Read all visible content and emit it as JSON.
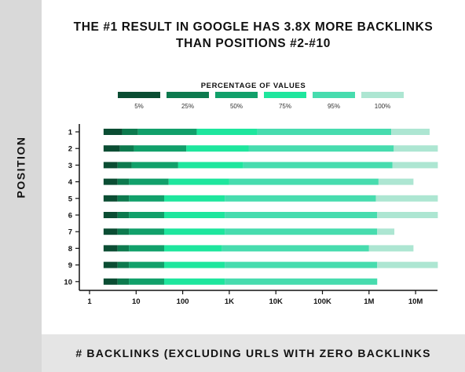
{
  "title_line1": "THE #1 RESULT IN GOOGLE HAS 3.8X MORE BACKLINKS",
  "title_line2": "THAN POSITIONS #2-#10",
  "legend_title": "PERCENTAGE OF VALUES",
  "ylabel": "POSITION",
  "xlabel": "# BACKLINKS (EXCLUDING URLS WITH ZERO BACKLINKS",
  "colors": {
    "shade_5": "#0b4d33",
    "shade_25": "#0d7a4e",
    "shade_50": "#11a06a",
    "shade_75": "#1ee69d",
    "shade_95": "#47dcae",
    "shade_100": "#ade6d2",
    "axis": "#111111"
  },
  "chart_data": {
    "type": "bar",
    "subtype": "horizontal stacked percentile ranges",
    "title": "THE #1 RESULT IN GOOGLE HAS 3.8X MORE BACKLINKS THAN POSITIONS #2-#10",
    "xlabel": "# BACKLINKS (EXCLUDING URLS WITH ZERO BACKLINKS",
    "ylabel": "POSITION",
    "x_scale": "log",
    "xlim": [
      1,
      50000000
    ],
    "x_ticks": [
      1,
      10,
      100,
      1000,
      10000,
      100000,
      1000000,
      10000000
    ],
    "x_tick_labels": [
      "1",
      "10",
      "100",
      "1K",
      "10K",
      "100K",
      "1M",
      "10M"
    ],
    "legend_placement": "top-center",
    "percentile_labels": [
      "5%",
      "25%",
      "50%",
      "75%",
      "95%",
      "100%"
    ],
    "percentile_colors": [
      "#0b4d33",
      "#0d7a4e",
      "#11a06a",
      "#1ee69d",
      "#47dcae",
      "#ade6d2"
    ],
    "categories": [
      "1",
      "2",
      "3",
      "4",
      "5",
      "6",
      "7",
      "8",
      "9",
      "10"
    ],
    "rows": [
      {
        "position": "1",
        "percentiles": [
          2,
          5,
          11,
          200,
          4000,
          3000000,
          20000000
        ]
      },
      {
        "position": "2",
        "percentiles": [
          2,
          4.5,
          9,
          120,
          2600,
          3400000,
          30000000
        ]
      },
      {
        "position": "3",
        "percentiles": [
          2,
          4,
          8,
          80,
          2000,
          3200000,
          30000000
        ]
      },
      {
        "position": "4",
        "percentiles": [
          2,
          4,
          7,
          50,
          1000,
          1600000,
          9000000
        ]
      },
      {
        "position": "5",
        "percentiles": [
          2,
          4,
          7,
          40,
          800,
          1400000,
          30000000
        ]
      },
      {
        "position": "6",
        "percentiles": [
          2,
          4,
          7,
          40,
          800,
          1500000,
          30000000
        ]
      },
      {
        "position": "7",
        "percentiles": [
          2,
          4,
          7,
          40,
          800,
          1500000,
          3500000
        ]
      },
      {
        "position": "8",
        "percentiles": [
          2,
          4,
          7,
          40,
          700,
          1000000,
          9000000
        ]
      },
      {
        "position": "9",
        "percentiles": [
          2,
          4,
          7,
          40,
          800,
          1500000,
          30000000
        ]
      },
      {
        "position": "10",
        "percentiles": [
          2,
          4,
          7,
          40,
          800,
          1500000,
          1000000
        ]
      }
    ],
    "grid": false
  }
}
